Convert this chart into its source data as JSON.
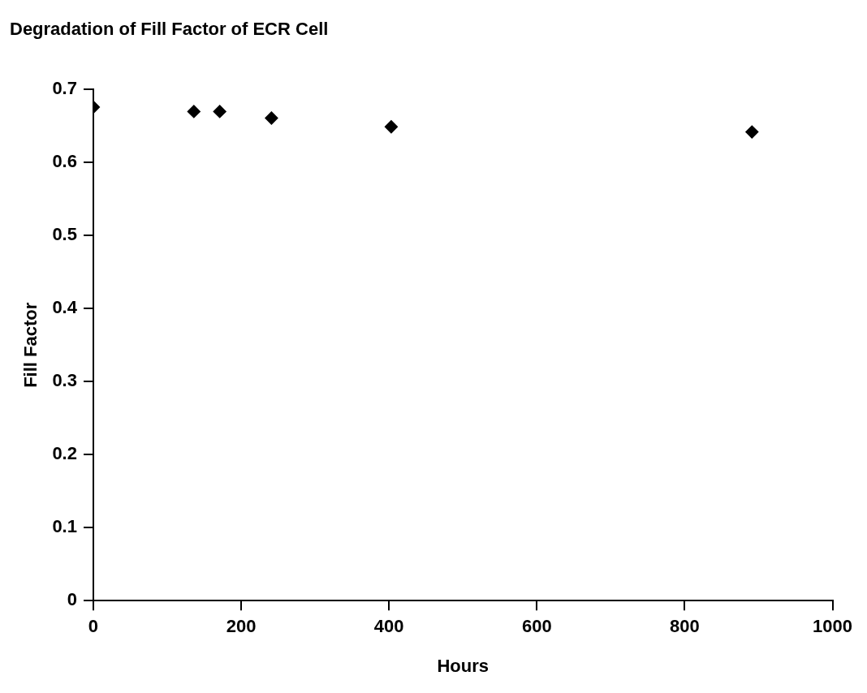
{
  "chart_data": {
    "type": "scatter",
    "title": "Degradation of Fill Factor of ECR Cell",
    "xlabel": "Hours",
    "ylabel": "Fill Factor",
    "x": [
      0,
      136,
      171,
      241,
      403,
      891
    ],
    "series": [
      {
        "color": "#000000",
        "values": [
          0.676,
          0.67,
          0.67,
          0.661,
          0.649,
          0.642
        ]
      }
    ],
    "xlim": [
      0,
      1000
    ],
    "xticks": [
      0,
      200,
      400,
      600,
      800,
      1000
    ],
    "ylim": [
      0,
      0.7
    ],
    "yticks": [
      0,
      0.1,
      0.2,
      0.3,
      0.4,
      0.5,
      0.6,
      0.7
    ],
    "grid": false,
    "legend": false,
    "marker": "diamond"
  }
}
